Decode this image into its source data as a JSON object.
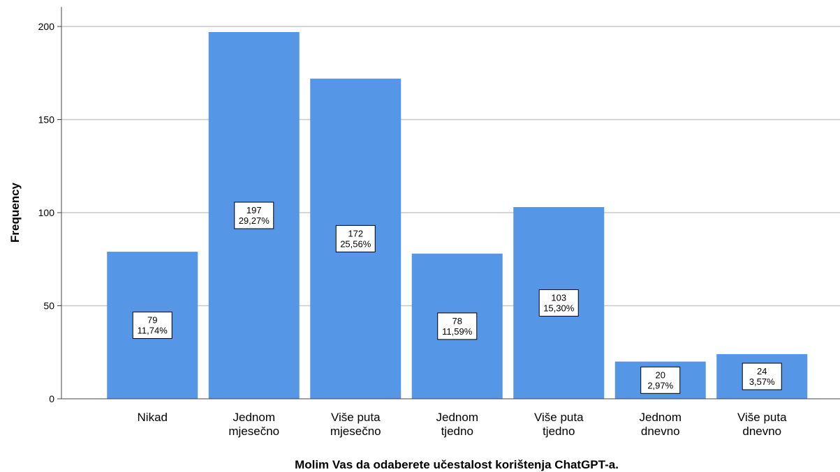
{
  "chart_data": {
    "type": "bar",
    "title": "",
    "xlabel": "Molim Vas da odaberete učestalost korištenja ChatGPT-a.",
    "ylabel": "Frequency",
    "ylim": [
      0,
      210
    ],
    "yticks": [
      0,
      50,
      100,
      150,
      200
    ],
    "grid": true,
    "categories": [
      [
        "Nikad"
      ],
      [
        "Jednom",
        "mjesečno"
      ],
      [
        "Više puta",
        "mjesečno"
      ],
      [
        "Jednom",
        "tjedno"
      ],
      [
        "Više puta",
        "tjedno"
      ],
      [
        "Jednom",
        "dnevno"
      ],
      [
        "Više puta",
        "dnevno"
      ]
    ],
    "values": [
      79,
      197,
      172,
      78,
      103,
      20,
      24
    ],
    "percent_labels": [
      "11,74%",
      "29,27%",
      "25,56%",
      "11,59%",
      "15,30%",
      "2,97%",
      "3,57%"
    ],
    "colors": {
      "bar": "#5596e6",
      "grid": "#c8c8c8",
      "axis": "#444444"
    }
  }
}
